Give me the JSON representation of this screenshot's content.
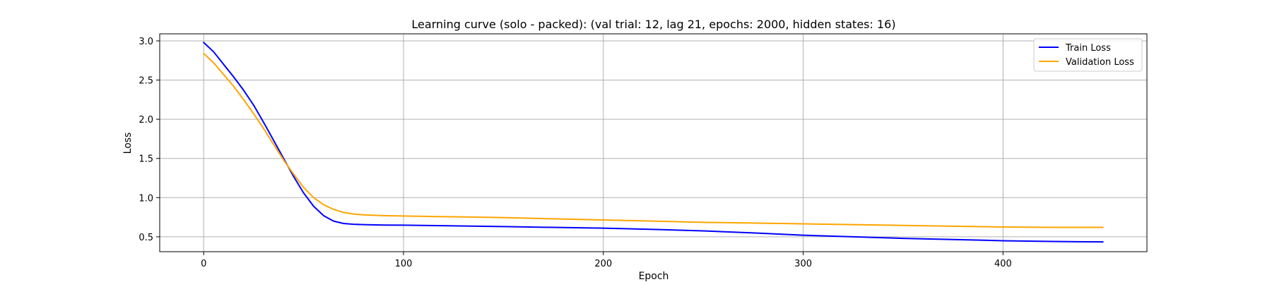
{
  "chart_data": {
    "type": "line",
    "title": "Learning curve (solo - packed): (val trial: 12, lag 21, epochs: 2000, hidden states: 16)",
    "xlabel": "Epoch",
    "ylabel": "Loss",
    "xlim": [
      -22,
      472
    ],
    "ylim": [
      0.31,
      3.09
    ],
    "xticks": [
      0,
      100,
      200,
      300,
      400
    ],
    "yticks": [
      0.5,
      1.0,
      1.5,
      2.0,
      2.5,
      3.0
    ],
    "xtick_labels": [
      "0",
      "100",
      "200",
      "300",
      "400"
    ],
    "ytick_labels": [
      "0.5",
      "1.0",
      "1.5",
      "2.0",
      "2.5",
      "3.0"
    ],
    "grid": true,
    "legend_position": "top-right",
    "series": [
      {
        "name": "Train Loss",
        "color": "#0000ff",
        "x": [
          0,
          5,
          10,
          15,
          20,
          25,
          30,
          35,
          40,
          45,
          50,
          55,
          60,
          65,
          70,
          75,
          80,
          90,
          100,
          125,
          150,
          175,
          200,
          225,
          250,
          275,
          300,
          325,
          350,
          375,
          400,
          425,
          450
        ],
        "y": [
          2.98,
          2.86,
          2.7,
          2.54,
          2.37,
          2.18,
          1.96,
          1.73,
          1.5,
          1.27,
          1.06,
          0.89,
          0.77,
          0.7,
          0.67,
          0.66,
          0.655,
          0.65,
          0.648,
          0.64,
          0.63,
          0.62,
          0.61,
          0.595,
          0.575,
          0.55,
          0.52,
          0.5,
          0.48,
          0.465,
          0.45,
          0.44,
          0.435
        ]
      },
      {
        "name": "Validation Loss",
        "color": "#ffa500",
        "x": [
          0,
          5,
          10,
          15,
          20,
          25,
          30,
          35,
          40,
          45,
          50,
          55,
          60,
          65,
          70,
          75,
          80,
          90,
          100,
          125,
          150,
          175,
          200,
          225,
          250,
          275,
          300,
          325,
          350,
          375,
          400,
          425,
          450
        ],
        "y": [
          2.84,
          2.72,
          2.57,
          2.42,
          2.25,
          2.07,
          1.88,
          1.68,
          1.48,
          1.3,
          1.13,
          1.0,
          0.91,
          0.85,
          0.81,
          0.79,
          0.78,
          0.77,
          0.765,
          0.755,
          0.745,
          0.73,
          0.715,
          0.7,
          0.685,
          0.675,
          0.665,
          0.655,
          0.645,
          0.635,
          0.625,
          0.62,
          0.62
        ]
      }
    ]
  }
}
